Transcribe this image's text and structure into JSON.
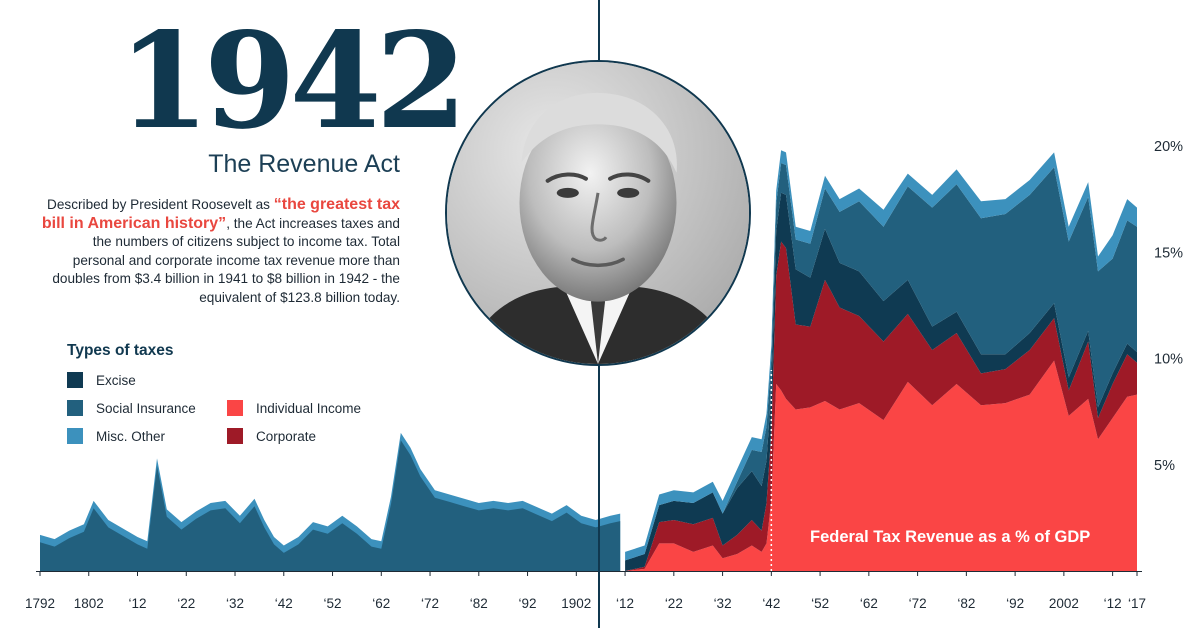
{
  "header": {
    "year": "1942",
    "subtitle": "The Revenue Act"
  },
  "description": {
    "before": "Described by President Roosevelt as ",
    "quote": "“the greatest tax bill in American history”",
    "after": ", the Act increases taxes and the numbers of citizens subject to income tax. Total personal and corporate income tax revenue more than doubles from $3.4 billion in 1941 to $8 billion in 1942 - the equivalent of $123.8 billion today."
  },
  "portrait": {
    "icon": "portrait-photo"
  },
  "legend": {
    "title": "Types of taxes",
    "items": [
      {
        "label": "Excise",
        "color": "#0f3a52"
      },
      {
        "label": "Social Insurance",
        "color": "#22607e"
      },
      {
        "label": "Misc. Other",
        "color": "#3c91bd"
      },
      {
        "label": "Individual Income",
        "color": "#fa4545"
      },
      {
        "label": "Corporate",
        "color": "#9e1a27"
      }
    ]
  },
  "chart_data": {
    "type": "area",
    "stacked": true,
    "title": "Federal Tax Revenue as a % of GDP",
    "xlabel": "",
    "ylabel": "",
    "xlim": [
      1792,
      2017
    ],
    "ylim": [
      0,
      20
    ],
    "y_ticks": [
      5,
      10,
      15,
      20
    ],
    "y_tick_labels": [
      "5%",
      "10%",
      "15%",
      "20%"
    ],
    "x_ticks": [
      1792,
      1802,
      1812,
      1822,
      1832,
      1842,
      1852,
      1862,
      1872,
      1882,
      1892,
      1902,
      1912,
      1922,
      1932,
      1942,
      1952,
      1962,
      1972,
      1982,
      1992,
      2002,
      2012,
      2017
    ],
    "x_tick_labels": [
      "1792",
      "1802",
      "‘12",
      "‘22",
      "‘32",
      "‘42",
      "‘52",
      "‘62",
      "‘72",
      "‘82",
      "‘92",
      "1902",
      "‘12",
      "‘22",
      "‘32",
      "‘42",
      "‘52",
      "‘62",
      "‘72",
      "‘82",
      "‘92",
      "2002",
      "‘12",
      "‘17"
    ],
    "annotation_year": 1942,
    "pre_1912_total": {
      "x": [
        1792,
        1795,
        1798,
        1801,
        1803,
        1806,
        1809,
        1812,
        1814,
        1816,
        1818,
        1821,
        1824,
        1827,
        1830,
        1833,
        1836,
        1838,
        1840,
        1842,
        1845,
        1848,
        1851,
        1854,
        1857,
        1860,
        1862,
        1864,
        1866,
        1868,
        1870,
        1873,
        1876,
        1879,
        1882,
        1885,
        1888,
        1891,
        1894,
        1897,
        1900,
        1903,
        1906,
        1909,
        1911
      ],
      "y": [
        1.7,
        1.5,
        1.9,
        2.2,
        3.3,
        2.4,
        2.0,
        1.6,
        1.4,
        5.3,
        2.9,
        2.3,
        2.8,
        3.2,
        3.3,
        2.6,
        3.4,
        2.4,
        1.6,
        1.2,
        1.6,
        2.3,
        2.1,
        2.6,
        2.1,
        1.5,
        1.4,
        3.5,
        6.5,
        5.8,
        4.8,
        3.8,
        3.6,
        3.4,
        3.2,
        3.3,
        3.2,
        3.3,
        3.0,
        2.7,
        3.1,
        2.6,
        2.4,
        2.6,
        2.7
      ]
    },
    "post_1912": {
      "x": [
        1912,
        1916,
        1919,
        1922,
        1926,
        1930,
        1932,
        1935,
        1938,
        1940,
        1941,
        1942,
        1943,
        1944,
        1945,
        1947,
        1950,
        1953,
        1956,
        1960,
        1965,
        1970,
        1975,
        1980,
        1985,
        1990,
        1995,
        2000,
        2003,
        2007,
        2009,
        2012,
        2015,
        2017
      ],
      "series": [
        {
          "name": "Individual Income",
          "values": [
            0.0,
            0.1,
            1.3,
            1.3,
            0.9,
            1.2,
            0.6,
            0.8,
            1.2,
            0.9,
            1.3,
            3.3,
            8.8,
            8.5,
            8.1,
            7.6,
            7.7,
            8.0,
            7.6,
            7.9,
            7.1,
            8.9,
            7.8,
            8.8,
            7.8,
            7.9,
            8.3,
            9.9,
            7.3,
            8.1,
            6.2,
            7.2,
            8.2,
            8.3
          ]
        },
        {
          "name": "Corporate",
          "values": [
            0.0,
            0.1,
            1.0,
            1.1,
            1.3,
            1.3,
            0.6,
            0.9,
            1.2,
            1.0,
            1.9,
            3.2,
            5.1,
            7.0,
            7.1,
            4.0,
            3.8,
            5.7,
            4.8,
            4.1,
            3.7,
            3.2,
            2.6,
            2.4,
            1.5,
            1.6,
            2.1,
            2.0,
            1.2,
            2.7,
            1.0,
            1.6,
            2.0,
            1.5
          ]
        },
        {
          "name": "Excise",
          "values": [
            0.5,
            0.6,
            0.8,
            0.9,
            1.0,
            1.2,
            1.5,
            2.2,
            2.3,
            2.1,
            2.0,
            2.0,
            2.1,
            2.3,
            2.5,
            2.6,
            2.3,
            2.4,
            2.1,
            2.1,
            1.9,
            1.6,
            1.1,
            1.0,
            0.9,
            0.7,
            0.8,
            0.7,
            0.6,
            0.5,
            0.5,
            0.5,
            0.5,
            0.5
          ]
        },
        {
          "name": "Social Insurance",
          "values": [
            0.0,
            0.0,
            0.0,
            0.0,
            0.0,
            0.0,
            0.0,
            0.3,
            1.0,
            1.6,
            1.6,
            1.5,
            1.3,
            1.4,
            1.4,
            1.4,
            1.6,
            1.9,
            2.4,
            3.3,
            3.5,
            4.4,
            5.6,
            6.0,
            6.4,
            6.6,
            6.5,
            6.4,
            6.4,
            6.3,
            6.4,
            5.4,
            5.8,
            5.9
          ]
        },
        {
          "name": "Misc. Other",
          "values": [
            0.4,
            0.4,
            0.5,
            0.5,
            0.5,
            0.5,
            0.6,
            0.6,
            0.6,
            0.6,
            0.6,
            0.6,
            0.6,
            0.6,
            0.6,
            0.6,
            0.6,
            0.6,
            0.6,
            0.6,
            0.8,
            0.6,
            0.6,
            0.7,
            0.8,
            0.7,
            0.7,
            0.7,
            0.7,
            0.7,
            0.7,
            1.1,
            1.0,
            0.9
          ]
        }
      ]
    }
  }
}
